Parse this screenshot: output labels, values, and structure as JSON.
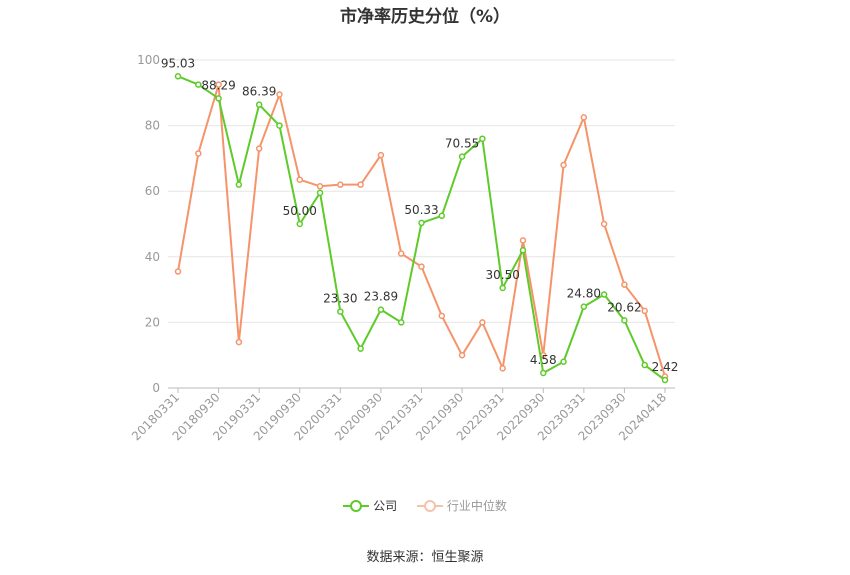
{
  "chart_data": {
    "type": "line",
    "title": "市净率历史分位（%）",
    "xlabel": "",
    "ylabel": "",
    "ylim": [
      0,
      100
    ],
    "yticks": [
      "0",
      "20",
      "40",
      "60",
      "80",
      "100"
    ],
    "x": [
      "20180331",
      "20180630",
      "20180930",
      "20181231",
      "20190331",
      "20190630",
      "20190930",
      "20191231",
      "20200331",
      "20200630",
      "20200930",
      "20201231",
      "20210331",
      "20210630",
      "20210930",
      "20211231",
      "20220331",
      "20220630",
      "20220930",
      "20221231",
      "20230331",
      "20230630",
      "20230930",
      "20231231",
      "20240418"
    ],
    "xtick_labels": [
      "20180331",
      "20180930",
      "20190331",
      "20190930",
      "20200331",
      "20200930",
      "20210331",
      "20210930",
      "20220331",
      "20220930",
      "20230331",
      "20230930",
      "20240418"
    ],
    "series": [
      {
        "name": "公司",
        "color": "#5ecb2a",
        "values": [
          95.03,
          92.5,
          88.29,
          62.0,
          86.39,
          80.0,
          50.0,
          59.5,
          23.3,
          12.0,
          23.89,
          20.0,
          50.33,
          52.5,
          70.55,
          76.0,
          30.5,
          42.0,
          4.58,
          8.0,
          24.8,
          28.5,
          20.62,
          7.0,
          2.42
        ],
        "labels": [
          "95.03",
          "",
          "88.29",
          "",
          "86.39",
          "",
          "50.00",
          "",
          "23.30",
          "",
          "23.89",
          "",
          "50.33",
          "",
          "70.55",
          "",
          "30.50",
          "",
          "4.58",
          "",
          "24.80",
          "",
          "20.62",
          "",
          "2.42"
        ]
      },
      {
        "name": "行业中位数",
        "color": "#f5946a",
        "values": [
          35.5,
          71.5,
          92.5,
          14.0,
          73.0,
          89.5,
          63.5,
          61.5,
          62.0,
          62.0,
          71.0,
          41.0,
          37.0,
          22.0,
          10.0,
          20.0,
          6.0,
          45.0,
          10.0,
          68.0,
          82.5,
          50.0,
          31.5,
          23.5,
          3.5
        ]
      }
    ],
    "grid": true,
    "legend_position": "bottom"
  },
  "source": "数据来源：恒生聚源"
}
